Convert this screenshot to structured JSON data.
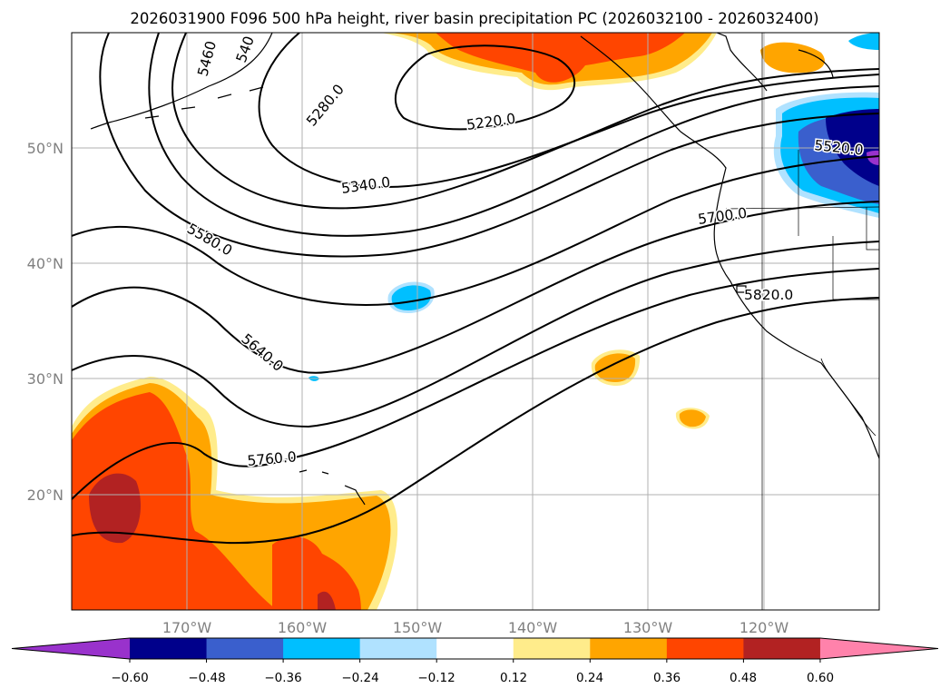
{
  "title": "2026031900 F096 500 hPa height, river basin precipitation PC (2026032100 - 2026032400)",
  "map": {
    "lon_labels": [
      "170°W",
      "160°W",
      "150°W",
      "140°W",
      "130°W",
      "120°W"
    ],
    "lat_labels": [
      "50°N",
      "40°N",
      "30°N",
      "20°N"
    ],
    "contour_labels": [
      "5460",
      "540",
      "5280.0",
      "5220.0",
      "5520.0",
      "5340.0",
      "5700.0",
      "5580.0",
      "5820.0",
      "5640.0",
      "5760.0"
    ],
    "gridline_color": "#b0b0b0",
    "contour_color": "#000000"
  },
  "colorbar": {
    "ticks": [
      "−0.60",
      "−0.48",
      "−0.36",
      "−0.24",
      "−0.12",
      "0.12",
      "0.24",
      "0.36",
      "0.48",
      "0.60"
    ],
    "colors": [
      "#9932cc",
      "#00008b",
      "#3a5fcd",
      "#00bfff",
      "#b0e2ff",
      "#ffffff",
      "#ffec8b",
      "#ffa500",
      "#ff4500",
      "#b22222",
      "#ff82ab"
    ]
  }
}
